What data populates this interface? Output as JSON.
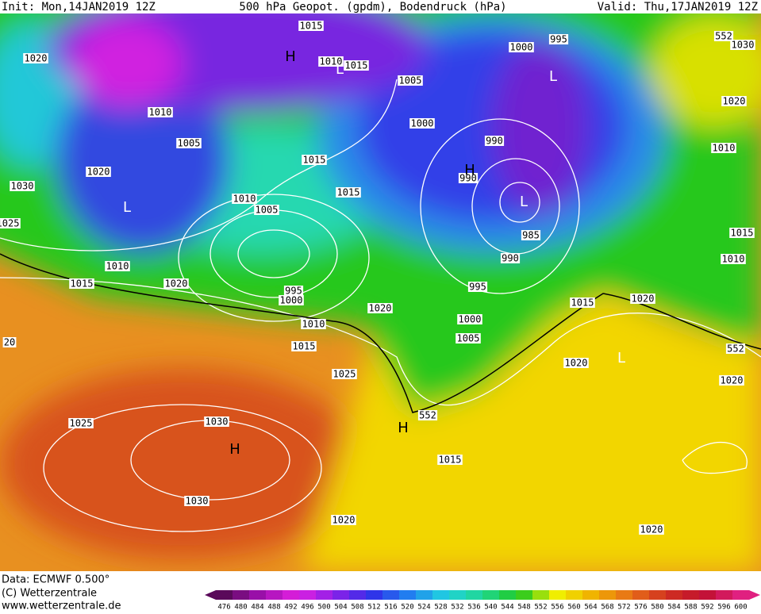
{
  "header": {
    "init": "Init: Mon,14JAN2019 12Z",
    "title": "500 hPa Geopot. (gpdm), Bodendruck (hPa)",
    "valid": "Valid: Thu,17JAN2019 12Z"
  },
  "footer": {
    "data": "Data: ECMWF  0.500°",
    "copyright": "(C) Wetterzentrale",
    "url": "www.wetterzentrale.de"
  },
  "legend": {
    "values": [
      476,
      480,
      484,
      488,
      492,
      496,
      500,
      504,
      508,
      512,
      516,
      520,
      524,
      528,
      532,
      536,
      540,
      544,
      548,
      552,
      556,
      560,
      564,
      568,
      572,
      576,
      580,
      584,
      588,
      592,
      596,
      600
    ]
  },
  "isobar_labels": [
    "1015",
    "1020",
    "1010",
    "1015",
    "1005",
    "1000",
    "995",
    "552",
    "1030",
    "1020",
    "1010",
    "1000",
    "990",
    "1005",
    "1010",
    "1015",
    "1020",
    "990",
    "1030",
    "1015",
    "1010",
    "1005",
    "1025",
    "985",
    "1015",
    "1010",
    "990",
    "1010",
    "1015",
    "1020",
    "995",
    "1000",
    "995",
    "1015",
    "1020",
    "1020",
    "1000",
    "1010",
    "1005",
    "1015",
    "552",
    "20",
    "1020",
    "1025",
    "1020",
    "1025",
    "1030",
    "552",
    "1015",
    "1030",
    "1020",
    "1020"
  ],
  "pressure_centers": [
    "H",
    "L",
    "L",
    "H",
    "L",
    "L",
    "L",
    "H",
    "H"
  ]
}
